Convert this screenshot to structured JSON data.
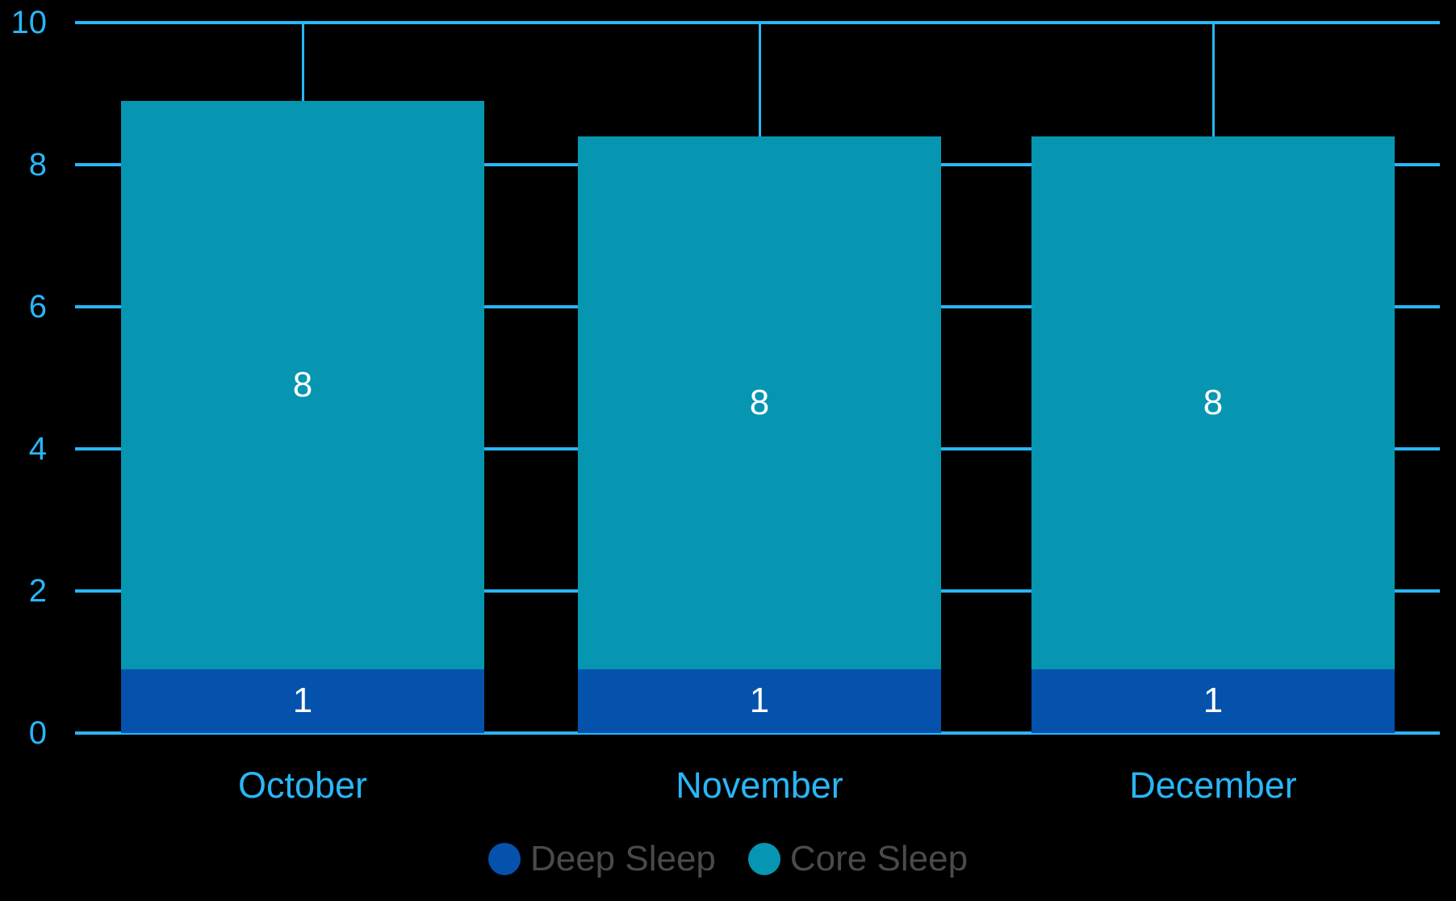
{
  "chart_data": {
    "type": "bar",
    "stacked": true,
    "orientation": "vertical",
    "categories": [
      "October",
      "November",
      "December"
    ],
    "series": [
      {
        "name": "Deep Sleep",
        "color": "#0552ad",
        "values": [
          0.9,
          0.9,
          0.9
        ],
        "labels": [
          "1",
          "1",
          "1"
        ]
      },
      {
        "name": "Core Sleep",
        "color": "#0696b2",
        "values": [
          8.0,
          7.5,
          7.5
        ],
        "labels": [
          "8",
          "8",
          "8"
        ]
      }
    ],
    "totals": [
      8.9,
      8.4,
      8.4
    ],
    "ylim": [
      0,
      10
    ],
    "yticks": [
      0,
      2,
      4,
      6,
      8,
      10
    ],
    "xlabel": "",
    "ylabel": "",
    "title": "",
    "grid": "horizontal gridlines at each y tick plus vertical line at each category center, drawn behind bars",
    "legend_position": "bottom"
  },
  "colors": {
    "background": "#000000",
    "axis_and_grid": "#29b6f6",
    "tick_label_text": "#29b6f6",
    "category_label_text": "#29b6f6",
    "bar_value_text": "#ffffff",
    "deep_sleep": "#0552ad",
    "core_sleep": "#0696b2",
    "legend_text": "#4a4a4a"
  },
  "legend": {
    "items": [
      {
        "label": "Deep Sleep",
        "color": "#0552ad"
      },
      {
        "label": "Core Sleep",
        "color": "#0696b2"
      }
    ]
  }
}
